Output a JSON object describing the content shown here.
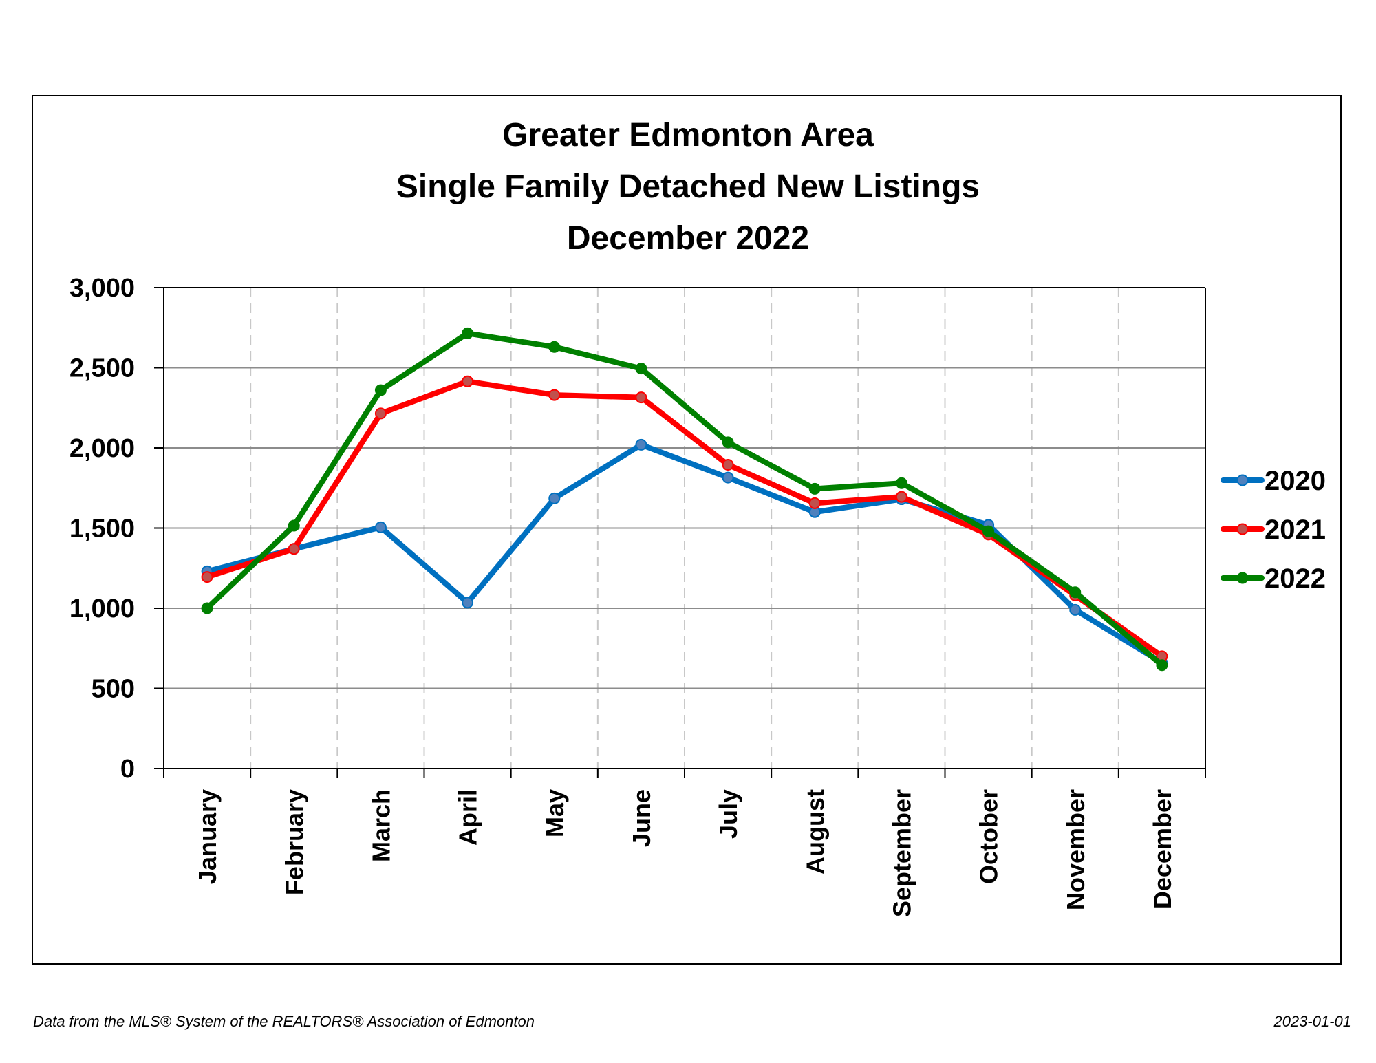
{
  "chart_data": {
    "type": "line",
    "title": [
      "Greater Edmonton Area",
      "Single Family Detached New Listings",
      "December 2022"
    ],
    "xlabel": "",
    "ylabel": "",
    "ylim": [
      0,
      3000
    ],
    "yticks": [
      0,
      500,
      1000,
      1500,
      2000,
      2500,
      3000
    ],
    "ytick_labels": [
      "0",
      "500",
      "1,000",
      "1,500",
      "2,000",
      "2,500",
      "3,000"
    ],
    "categories": [
      "January",
      "February",
      "March",
      "April",
      "May",
      "June",
      "July",
      "August",
      "September",
      "October",
      "November",
      "December"
    ],
    "grid": {
      "horizontal": "solid",
      "vertical": "dashed"
    },
    "legend_position": "right",
    "series": [
      {
        "name": "2020",
        "color": "#0070c0",
        "marker_color": "#4f81bd",
        "values": [
          1230,
          1370,
          1505,
          1035,
          1685,
          2020,
          1815,
          1600,
          1680,
          1520,
          990,
          660
        ]
      },
      {
        "name": "2021",
        "color": "#ff0000",
        "marker_color": "#c0504d",
        "values": [
          1195,
          1370,
          2215,
          2415,
          2330,
          2315,
          1895,
          1655,
          1695,
          1460,
          1080,
          700
        ]
      },
      {
        "name": "2022",
        "color": "#008000",
        "marker_color": "#008000",
        "values": [
          1000,
          1515,
          2360,
          2715,
          2630,
          2495,
          2035,
          1745,
          1780,
          1480,
          1100,
          645
        ]
      }
    ]
  },
  "footer": {
    "source": "Data from the MLS® System of the REALTORS® Association of Edmonton",
    "date": "2023-01-01"
  }
}
